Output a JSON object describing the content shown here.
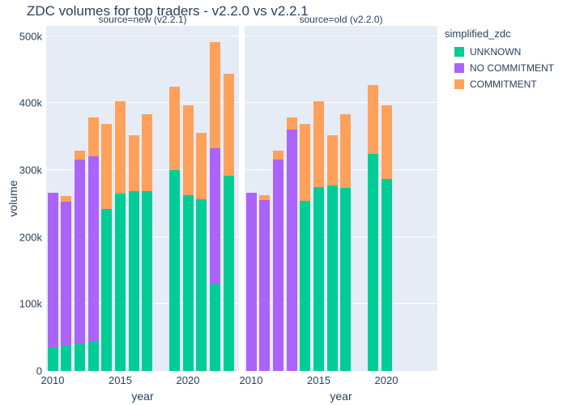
{
  "chart_data": {
    "type": "bar",
    "stacked": true,
    "title": "ZDC volumes for top traders - v2.2.0 vs v2.2.1",
    "xlabel": "year",
    "ylabel": "volume",
    "legend_title": "simplified_zdc",
    "legend_position": "top-right",
    "grid": true,
    "ylim": [
      0,
      515000
    ],
    "yticks": [
      "0",
      "100k",
      "200k",
      "300k",
      "400k",
      "500k"
    ],
    "xticks": [
      2010,
      2015,
      2020
    ],
    "series_names": [
      "UNKNOWN",
      "NO COMMITMENT",
      "COMMITMENT"
    ],
    "colors": {
      "UNKNOWN": "#00CC96",
      "NO COMMITMENT": "#AB63FA",
      "COMMITMENT": "#FFA15A",
      "plot_background": "#E5ECF6",
      "grid": "#ffffff",
      "text": "#2a3f5f"
    },
    "facets": [
      {
        "key": "new",
        "label": "source=new (v2.2.1)",
        "years": [
          2010,
          2011,
          2012,
          2013,
          2014,
          2015,
          2016,
          2017,
          2019,
          2020,
          2021,
          2022,
          2023
        ],
        "series": [
          {
            "name": "UNKNOWN",
            "values": [
              35000,
              37000,
              41000,
              45000,
              242000,
              265000,
              268000,
              269000,
              300000,
              262000,
              256000,
              129000,
              292000
            ]
          },
          {
            "name": "NO COMMITMENT",
            "values": [
              231000,
              216000,
              275000,
              276000,
              0,
              0,
              0,
              0,
              0,
              0,
              0,
              204000,
              0
            ]
          },
          {
            "name": "COMMITMENT",
            "values": [
              0,
              8000,
              13000,
              58000,
              127000,
              138000,
              84000,
              114000,
              125000,
              135000,
              100000,
              158000,
              152000
            ]
          }
        ]
      },
      {
        "key": "old",
        "label": "source=old (v2.2.0)",
        "years": [
          2010,
          2011,
          2012,
          2013,
          2014,
          2015,
          2016,
          2017,
          2019,
          2020
        ],
        "series": [
          {
            "name": "UNKNOWN",
            "values": [
              0,
              0,
              0,
              0,
              254000,
              275000,
              277000,
              273000,
              324000,
              287000
            ]
          },
          {
            "name": "NO COMMITMENT",
            "values": [
              266000,
              255000,
              316000,
              360000,
              0,
              0,
              0,
              0,
              0,
              0
            ]
          },
          {
            "name": "COMMITMENT",
            "values": [
              0,
              8000,
              13000,
              19000,
              115000,
              128000,
              75000,
              110000,
              103000,
              110000
            ]
          }
        ]
      }
    ]
  }
}
